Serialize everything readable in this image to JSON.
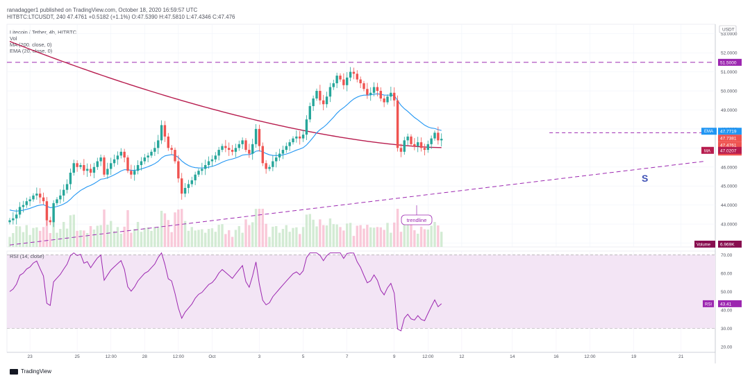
{
  "header": {
    "line1": "ranadagger1 published on TradingView.com, October 18, 2020 16:59:57 UTC",
    "line2": "HITBTC:LTCUSDT, 240  47.4761  +0.5182 (+1.1%)  O:47.5390  H:47.5810  L:47.4346  C:47.476"
  },
  "legend": {
    "symbol": "Litecoin / Tether, 4h, HITBTC",
    "vol": "Vol",
    "ma": "MA (200, close, 0)",
    "ema": "EMA (20, close, 0)"
  },
  "currency": "USDT",
  "price_tags": {
    "resistance": "51.5000",
    "ema_label": "EMA",
    "ema_value": "47.7719",
    "last": "47.7381",
    "close": "47.4761",
    "timer": "03:00:04",
    "ma_label": "MA",
    "ma_value": "47.0207",
    "volume_label": "Volume",
    "volume_value": "6.969K",
    "rsi_label": "RSI",
    "rsi_value": "43.41"
  },
  "annotations": {
    "trendline": "trendline",
    "support_mark": "S"
  },
  "rsi_panel": {
    "title": "RSI (14, close)"
  },
  "colors": {
    "up": "#26a69a",
    "down": "#ef5350",
    "ema": "#2196f3",
    "ma": "#b71c4e",
    "rsi": "#9c27b0",
    "resistance": "#9c27b0",
    "rsi_band": "#f3e5f5"
  },
  "footer": {
    "brand": "TradingView"
  },
  "chart_data": [
    {
      "type": "candlestick",
      "title": "Litecoin / Tether, 4h, HITBTC",
      "y_axis_labels": [
        "53.0000",
        "52.0000",
        "51.0000",
        "50.0000",
        "49.0000",
        "48.0000",
        "47.0000",
        "46.0000",
        "45.0000",
        "44.0000",
        "43.0000",
        "42.0000"
      ],
      "ylim": [
        41.8,
        53.5
      ],
      "x_tick_labels": [
        "23",
        "25",
        "12:00",
        "28",
        "12:00",
        "Oct",
        "3",
        "5",
        "7",
        "9",
        "12:00",
        "12",
        "14",
        "16",
        "12:00",
        "19",
        "21"
      ],
      "x_tick_candles": [
        6,
        20,
        30,
        40,
        50,
        60,
        74,
        87,
        100,
        114,
        124,
        134,
        149,
        162,
        172,
        185,
        199
      ],
      "closes": [
        43.2,
        43.3,
        43.5,
        43.9,
        44.0,
        44.2,
        44.3,
        44.5,
        44.6,
        44.4,
        44.2,
        43.2,
        43.1,
        44.1,
        44.3,
        44.5,
        44.8,
        45.1,
        45.7,
        46.2,
        46.0,
        46.1,
        45.8,
        45.9,
        45.7,
        46.0,
        46.3,
        46.5,
        45.6,
        45.9,
        46.2,
        46.4,
        46.6,
        46.8,
        46.5,
        45.8,
        45.6,
        45.8,
        46.1,
        46.3,
        46.5,
        46.6,
        46.8,
        47.0,
        47.4,
        48.2,
        47.6,
        47.0,
        46.9,
        46.3,
        45.4,
        44.6,
        44.9,
        45.1,
        45.3,
        45.6,
        45.8,
        45.9,
        46.1,
        46.3,
        46.4,
        46.6,
        46.9,
        47.1,
        47.0,
        46.9,
        46.8,
        47.0,
        47.2,
        47.4,
        46.9,
        46.7,
        47.2,
        48.0,
        47.1,
        46.2,
        45.9,
        46.0,
        46.3,
        46.5,
        46.7,
        46.9,
        47.1,
        47.3,
        47.5,
        47.6,
        47.5,
        47.7,
        48.5,
        49.2,
        49.6,
        50.0,
        49.5,
        49.3,
        49.7,
        50.2,
        50.4,
        50.8,
        50.6,
        50.3,
        50.7,
        51.0,
        50.9,
        50.6,
        50.4,
        50.1,
        49.8,
        49.9,
        50.2,
        50.0,
        49.6,
        49.4,
        49.7,
        49.9,
        49.5,
        47.0,
        46.8,
        47.4,
        47.6,
        47.2,
        47.1,
        47.3,
        47.0,
        46.9,
        47.2,
        47.5,
        47.8,
        47.4,
        47.48
      ],
      "ema20_endpoints": {
        "start": 46.4,
        "end": 47.77
      },
      "ma200_endpoints": {
        "start": 52.6,
        "end": 47.02
      },
      "resistance_level": 51.5,
      "dashed_level": 47.8,
      "trendline": {
        "from": [
          0,
          41.9
        ],
        "to": [
          206,
          46.3
        ]
      }
    },
    {
      "type": "bar",
      "title": "Volume",
      "last_value": "6.969K"
    },
    {
      "type": "line",
      "title": "RSI (14, close)",
      "y_axis_labels": [
        "70.00",
        "60.00",
        "50.00",
        "40.00",
        "30.00",
        "20.00"
      ],
      "ylim": [
        17,
        72
      ],
      "band": [
        30,
        70
      ],
      "last_value": 43.41
    }
  ]
}
